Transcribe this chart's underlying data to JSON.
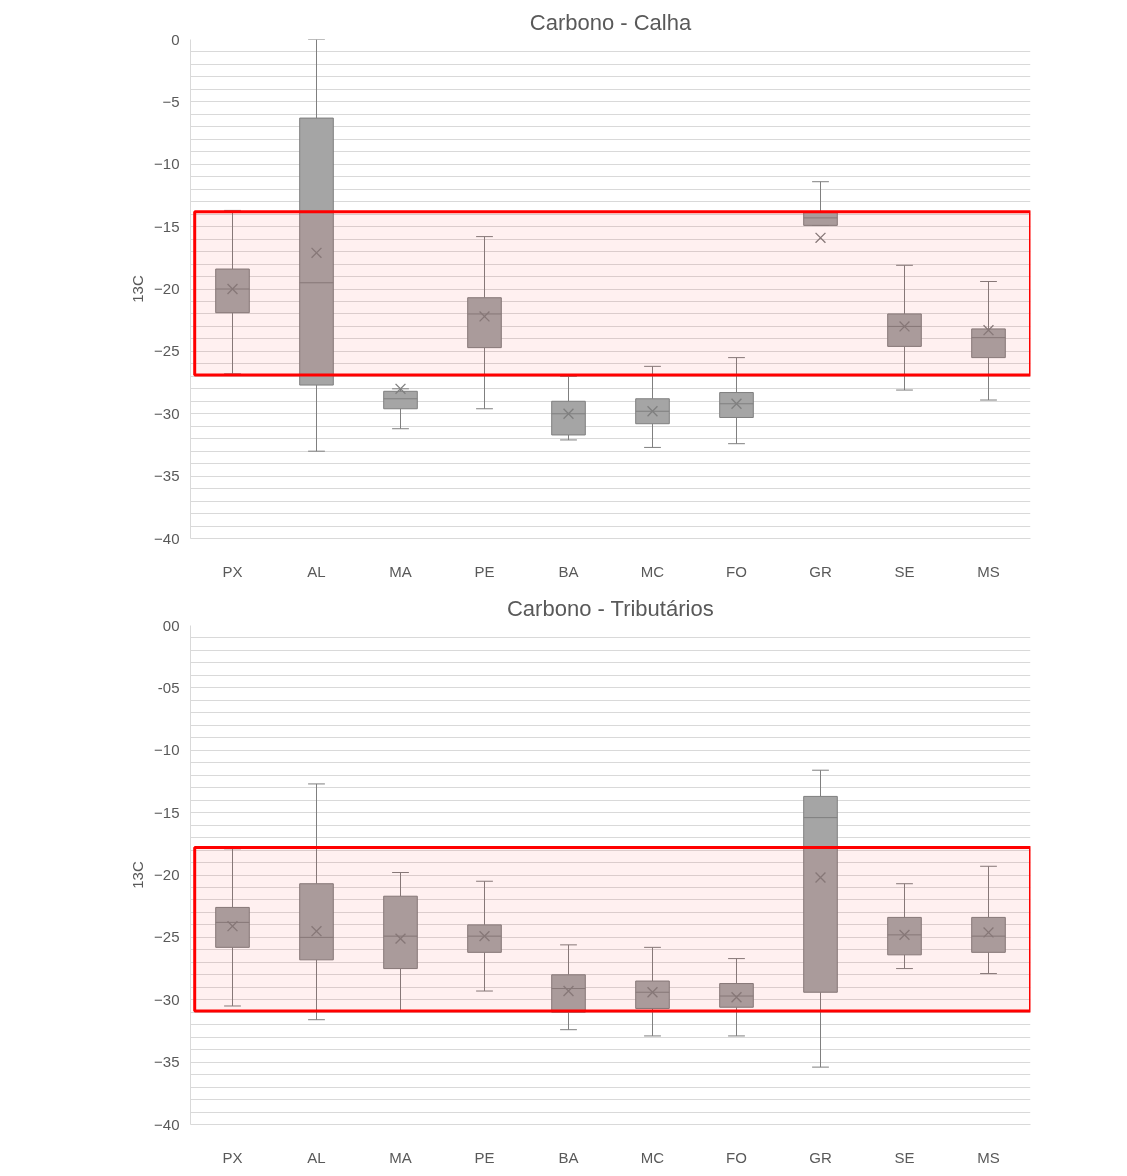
{
  "chart_data": [
    {
      "type": "box",
      "title": "Carbono - Calha",
      "ylabel": "13C",
      "categories": [
        "PX",
        "AL",
        "MA",
        "PE",
        "BA",
        "MC",
        "FO",
        "GR",
        "SE",
        "MS"
      ],
      "ylim": [
        -40,
        0
      ],
      "yticks": [
        0,
        -5,
        -10,
        -15,
        -20,
        -25,
        -30,
        -35,
        -40
      ],
      "grid": "y",
      "marker": "cross",
      "bands": [
        {
          "axis": "y",
          "from": -26.9,
          "to": -13.8,
          "label": null,
          "color": "#ff0000"
        }
      ],
      "series": [
        {
          "color": "#a5a5a5",
          "boxes": [
            {
              "low": -26.8,
              "q1": -21.9,
              "median": -20.0,
              "q3": -18.4,
              "high": -13.7,
              "mean": -20.0
            },
            {
              "low": -33.0,
              "q1": -27.7,
              "median": -19.5,
              "q3": -6.3,
              "high": 0,
              "mean": -17.1
            },
            {
              "low": -31.2,
              "q1": -29.6,
              "median": -28.8,
              "q3": -28.2,
              "high": -28.0,
              "mean": -28.0
            },
            {
              "low": -29.6,
              "q1": -24.7,
              "median": -22.0,
              "q3": -20.7,
              "high": -15.8,
              "mean": -22.2
            },
            {
              "low": -32.1,
              "q1": -31.7,
              "median": -30.0,
              "q3": -29.0,
              "high": -27.0,
              "mean": -30.0
            },
            {
              "low": -32.7,
              "q1": -30.8,
              "median": -29.8,
              "q3": -28.8,
              "high": -26.2,
              "mean": -29.8
            },
            {
              "low": -32.4,
              "q1": -30.3,
              "median": -29.2,
              "q3": -28.3,
              "high": -25.5,
              "mean": -29.2
            },
            {
              "low": -14.9,
              "q1": -14.9,
              "median": -14.3,
              "q3": -13.8,
              "high": -11.4,
              "mean": -15.9
            },
            {
              "low": -28.1,
              "q1": -24.6,
              "median": -23.0,
              "q3": -22.0,
              "high": -18.1,
              "mean": -23.0
            },
            {
              "low": -28.9,
              "q1": -25.5,
              "median": -23.9,
              "q3": -23.2,
              "high": -19.4,
              "mean": -23.3
            }
          ]
        }
      ]
    },
    {
      "type": "box",
      "title": "Carbono - Tributários",
      "ylabel": "13C",
      "categories": [
        "PX",
        "AL",
        "MA",
        "PE",
        "BA",
        "MC",
        "FO",
        "GR",
        "SE",
        "MS"
      ],
      "ylim": [
        -40,
        0
      ],
      "yticks": [
        {
          "value": 0,
          "label": "00"
        },
        {
          "value": -5,
          "label": "-05"
        },
        -10,
        -15,
        -20,
        -25,
        -30,
        -35,
        -40
      ],
      "grid": "y",
      "marker": "cross",
      "bands": [
        {
          "axis": "y",
          "from": -30.9,
          "to": -17.8,
          "label": null,
          "color": "#ff0000"
        }
      ],
      "series": [
        {
          "color": "#a5a5a5",
          "boxes": [
            {
              "low": -30.5,
              "q1": -25.8,
              "median": -23.8,
              "q3": -22.6,
              "high": -17.9,
              "mean": -24.1
            },
            {
              "low": -31.6,
              "q1": -26.8,
              "median": -25.0,
              "q3": -20.7,
              "high": -12.7,
              "mean": -24.5
            },
            {
              "low": -30.9,
              "q1": -27.5,
              "median": -24.9,
              "q3": -21.7,
              "high": -19.8,
              "mean": -25.1
            },
            {
              "low": -29.3,
              "q1": -26.2,
              "median": -24.9,
              "q3": -24.0,
              "high": -20.5,
              "mean": -24.9
            },
            {
              "low": -32.4,
              "q1": -31.0,
              "median": -29.1,
              "q3": -28.0,
              "high": -25.6,
              "mean": -29.3
            },
            {
              "low": -32.9,
              "q1": -30.7,
              "median": -29.4,
              "q3": -28.5,
              "high": -25.8,
              "mean": -29.4
            },
            {
              "low": -32.9,
              "q1": -30.6,
              "median": -29.7,
              "q3": -28.7,
              "high": -26.7,
              "mean": -29.8
            },
            {
              "low": -35.4,
              "q1": -29.4,
              "median": -15.4,
              "q3": -13.7,
              "high": -11.6,
              "mean": -20.2
            },
            {
              "low": -27.5,
              "q1": -26.4,
              "median": -24.8,
              "q3": -23.4,
              "high": -20.7,
              "mean": -24.8
            },
            {
              "low": -27.9,
              "q1": -26.2,
              "median": -24.9,
              "q3": -23.4,
              "high": -19.3,
              "mean": -24.6
            }
          ]
        }
      ]
    }
  ]
}
